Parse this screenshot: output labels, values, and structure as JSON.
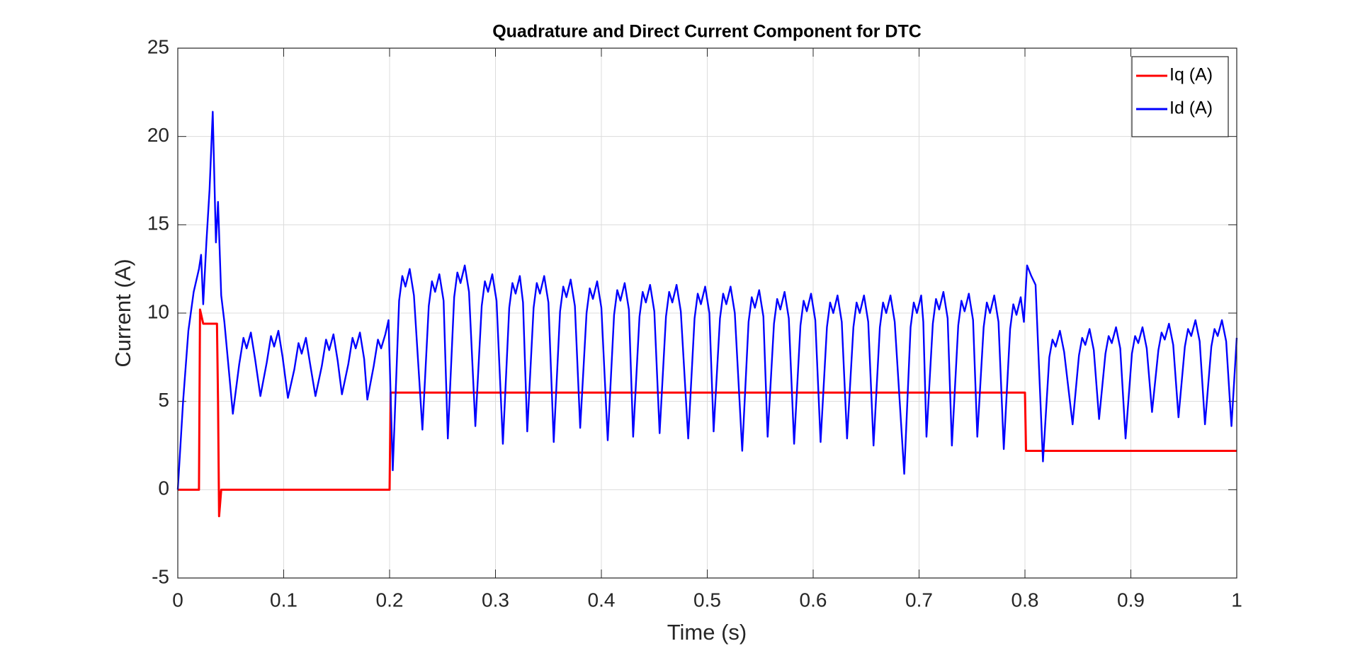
{
  "chart_data": {
    "type": "line",
    "title": "Quadrature and Direct Current Component for DTC",
    "x_label": "Time (s)",
    "y_label": "Current (A)",
    "xlim": [
      0,
      1
    ],
    "xticks": [
      0,
      0.1,
      0.2,
      0.3,
      0.4,
      0.5,
      0.6,
      0.7,
      0.8,
      0.9,
      1
    ],
    "ylim": [
      -5,
      25
    ],
    "yticks": [
      -5,
      0,
      5,
      10,
      15,
      20,
      25
    ],
    "grid": true,
    "legend": "northeast",
    "series": [
      {
        "name": "Iq (A)",
        "color": "#ff0000",
        "x": [
          0,
          0.02,
          0.021,
          0.024,
          0.037,
          0.038,
          0.039,
          0.041,
          0.2,
          0.201,
          0.8,
          0.801,
          1
        ],
        "values": [
          0,
          0,
          10.2,
          9.4,
          9.4,
          5,
          -1.5,
          0,
          0,
          5.5,
          5.5,
          2.2,
          2.2
        ]
      },
      {
        "name": "Id (A)",
        "color": "#0000ff",
        "x": [
          0,
          0.005,
          0.01,
          0.015,
          0.02,
          0.022,
          0.024,
          0.027,
          0.03,
          0.033,
          0.036,
          0.038,
          0.041,
          0.044,
          0.052,
          0.058,
          0.062,
          0.065,
          0.069,
          0.073,
          0.078,
          0.084,
          0.088,
          0.091,
          0.095,
          0.099,
          0.104,
          0.11,
          0.114,
          0.117,
          0.121,
          0.125,
          0.13,
          0.136,
          0.14,
          0.143,
          0.147,
          0.151,
          0.155,
          0.161,
          0.165,
          0.168,
          0.172,
          0.176,
          0.179,
          0.185,
          0.189,
          0.192,
          0.196,
          0.199,
          0.203,
          0.209,
          0.212,
          0.215,
          0.219,
          0.223,
          0.231,
          0.237,
          0.24,
          0.243,
          0.247,
          0.251,
          0.255,
          0.261,
          0.264,
          0.267,
          0.271,
          0.275,
          0.281,
          0.287,
          0.29,
          0.293,
          0.297,
          0.301,
          0.307,
          0.313,
          0.316,
          0.319,
          0.323,
          0.326,
          0.33,
          0.336,
          0.339,
          0.342,
          0.346,
          0.35,
          0.355,
          0.361,
          0.364,
          0.367,
          0.371,
          0.375,
          0.38,
          0.386,
          0.389,
          0.392,
          0.396,
          0.4,
          0.406,
          0.412,
          0.415,
          0.418,
          0.422,
          0.426,
          0.43,
          0.436,
          0.439,
          0.442,
          0.446,
          0.45,
          0.455,
          0.461,
          0.464,
          0.467,
          0.471,
          0.475,
          0.482,
          0.488,
          0.491,
          0.494,
          0.498,
          0.502,
          0.506,
          0.512,
          0.515,
          0.518,
          0.522,
          0.526,
          0.533,
          0.539,
          0.542,
          0.545,
          0.549,
          0.553,
          0.557,
          0.563,
          0.566,
          0.569,
          0.573,
          0.577,
          0.582,
          0.588,
          0.591,
          0.594,
          0.598,
          0.602,
          0.607,
          0.613,
          0.616,
          0.619,
          0.623,
          0.627,
          0.632,
          0.638,
          0.641,
          0.644,
          0.648,
          0.652,
          0.657,
          0.663,
          0.666,
          0.669,
          0.673,
          0.677,
          0.686,
          0.692,
          0.695,
          0.698,
          0.702,
          0.704,
          0.707,
          0.713,
          0.716,
          0.719,
          0.723,
          0.727,
          0.731,
          0.737,
          0.74,
          0.743,
          0.747,
          0.751,
          0.755,
          0.761,
          0.764,
          0.767,
          0.771,
          0.775,
          0.78,
          0.786,
          0.789,
          0.792,
          0.796,
          0.799,
          0.802,
          0.806,
          0.81,
          0.817,
          0.823,
          0.826,
          0.829,
          0.833,
          0.837,
          0.845,
          0.851,
          0.854,
          0.857,
          0.861,
          0.865,
          0.87,
          0.876,
          0.879,
          0.882,
          0.886,
          0.89,
          0.895,
          0.901,
          0.904,
          0.907,
          0.911,
          0.915,
          0.92,
          0.926,
          0.929,
          0.932,
          0.936,
          0.94,
          0.945,
          0.951,
          0.954,
          0.957,
          0.961,
          0.965,
          0.97,
          0.976,
          0.979,
          0.982,
          0.986,
          0.99,
          0.995,
          1
        ],
        "values": [
          0,
          5,
          9,
          11.2,
          12.5,
          13.3,
          10.5,
          14,
          17,
          21.4,
          14,
          16.3,
          11,
          9.5,
          4.3,
          7.1,
          8.6,
          8.0,
          8.9,
          7.4,
          5.3,
          7.2,
          8.7,
          8.1,
          9.0,
          7.5,
          5.2,
          6.8,
          8.3,
          7.7,
          8.6,
          7.1,
          5.3,
          7.0,
          8.5,
          7.9,
          8.8,
          7.3,
          5.4,
          7.1,
          8.6,
          8.0,
          8.9,
          7.4,
          5.1,
          7.0,
          8.5,
          8.0,
          8.8,
          9.6,
          1.1,
          10.7,
          12.1,
          11.5,
          12.5,
          11.0,
          3.4,
          10.4,
          11.8,
          11.2,
          12.2,
          10.7,
          2.9,
          10.9,
          12.3,
          11.7,
          12.7,
          11.2,
          3.6,
          10.4,
          11.8,
          11.2,
          12.2,
          10.7,
          2.6,
          10.3,
          11.7,
          11.1,
          12.1,
          10.6,
          3.3,
          10.3,
          11.7,
          11.1,
          12.1,
          10.6,
          2.7,
          10.1,
          11.5,
          10.9,
          11.9,
          10.4,
          3.5,
          10.0,
          11.4,
          10.8,
          11.8,
          10.3,
          2.8,
          9.9,
          11.3,
          10.7,
          11.7,
          10.2,
          3.0,
          9.8,
          11.2,
          10.6,
          11.6,
          10.1,
          3.2,
          9.8,
          11.2,
          10.6,
          11.6,
          10.1,
          2.9,
          9.7,
          11.1,
          10.5,
          11.5,
          10.0,
          3.3,
          9.7,
          11.1,
          10.5,
          11.5,
          10.0,
          2.2,
          9.5,
          10.9,
          10.3,
          11.3,
          9.8,
          3.0,
          9.4,
          10.8,
          10.2,
          11.2,
          9.7,
          2.6,
          9.3,
          10.7,
          10.1,
          11.1,
          9.6,
          2.7,
          9.2,
          10.6,
          10.0,
          11.0,
          9.5,
          2.9,
          9.2,
          10.6,
          10.0,
          11.0,
          9.5,
          2.5,
          9.2,
          10.6,
          10.0,
          11.0,
          9.5,
          0.9,
          9.2,
          10.6,
          10.0,
          11.0,
          9.5,
          3.0,
          9.4,
          10.8,
          10.2,
          11.2,
          9.7,
          2.5,
          9.3,
          10.7,
          10.1,
          11.1,
          9.6,
          3.0,
          9.2,
          10.6,
          10.0,
          11.0,
          9.5,
          2.3,
          9.1,
          10.5,
          9.9,
          10.9,
          9.5,
          12.7,
          12.1,
          11.6,
          1.6,
          7.5,
          8.5,
          8.1,
          9.0,
          7.8,
          3.7,
          7.6,
          8.6,
          8.2,
          9.1,
          7.9,
          4.0,
          7.7,
          8.7,
          8.3,
          9.2,
          8.0,
          2.9,
          7.7,
          8.7,
          8.3,
          9.2,
          8.0,
          4.4,
          7.9,
          8.9,
          8.5,
          9.4,
          8.2,
          4.1,
          8.1,
          9.1,
          8.7,
          9.6,
          8.4,
          3.7,
          8.1,
          9.1,
          8.7,
          9.6,
          8.4,
          3.6,
          8.6
        ]
      }
    ]
  }
}
